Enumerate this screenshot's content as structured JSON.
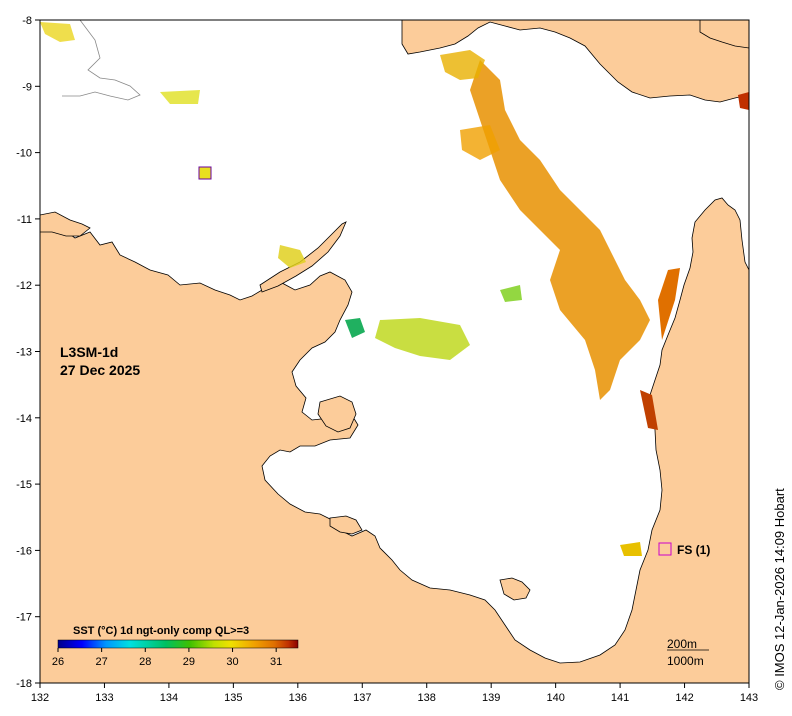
{
  "map": {
    "title_line1": "L3SM-1d",
    "title_line2": "27 Dec 2025",
    "lon_ticks": [
      "132",
      "133",
      "134",
      "135",
      "136",
      "137",
      "138",
      "139",
      "140",
      "141",
      "142",
      "143"
    ],
    "lat_ticks": [
      "-8",
      "-9",
      "-10",
      "-11",
      "-12",
      "-13",
      "-14",
      "-15",
      "-16",
      "-17",
      "-18"
    ],
    "legend": {
      "title": "SST (°C) 1d ngt-only comp QL>=3",
      "ticks": [
        "26",
        "27",
        "28",
        "29",
        "30",
        "31"
      ],
      "range_c": [
        26,
        31.5
      ],
      "colors": [
        "#00008b",
        "#0000ff",
        "#0096ff",
        "#00e0e0",
        "#00c060",
        "#40c000",
        "#c0e000",
        "#f0e000",
        "#f0a000",
        "#e07000",
        "#c03000",
        "#8b0000"
      ]
    },
    "marker_label": "FS (1)",
    "contour_line1": "200m",
    "contour_line2": "1000m",
    "credit": "© IMOS 12-Jan-2026 14:09 Hobart",
    "colors": {
      "land": "#fccc9a",
      "ocean": "#ffffff",
      "coast": "#000000",
      "marker": "#cc00cc",
      "sst_warm": "#e89000",
      "sst_yellow": "#e8e020",
      "sst_green": "#40c040"
    }
  }
}
